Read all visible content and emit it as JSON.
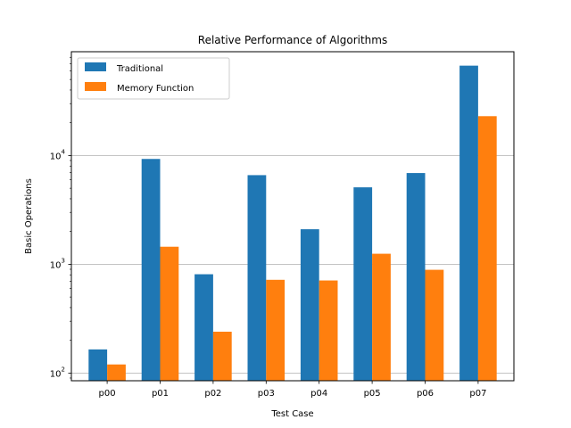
{
  "chart_data": {
    "type": "bar",
    "title": "Relative Performance of Algorithms",
    "xlabel": "Test Case",
    "ylabel": "Basic Operations",
    "y_scale": "log",
    "ylim": [
      85,
      90000
    ],
    "grid": "y-major",
    "legend_position": "top-left",
    "categories": [
      "p00",
      "p01",
      "p02",
      "p03",
      "p04",
      "p05",
      "p06",
      "p07"
    ],
    "series": [
      {
        "name": "Traditional",
        "color": "#1f77b4",
        "values": [
          165,
          9300,
          810,
          6600,
          2100,
          5100,
          6900,
          67000
        ]
      },
      {
        "name": "Memory Function",
        "color": "#ff7f0e",
        "values": [
          120,
          1450,
          240,
          720,
          710,
          1250,
          890,
          23000
        ]
      }
    ],
    "y_ticks": [
      {
        "value": 100,
        "base": "10",
        "exp": "2"
      },
      {
        "value": 1000,
        "base": "10",
        "exp": "3"
      },
      {
        "value": 10000,
        "base": "10",
        "exp": "4"
      }
    ]
  }
}
